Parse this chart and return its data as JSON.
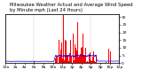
{
  "title1": "Milwaukee Weather Actual and Average Wind Speed",
  "title2": "by Minute mph (Last 24 Hours)",
  "ylabel_right_ticks": [
    0,
    5,
    10,
    15,
    20,
    25,
    30
  ],
  "ylim": [
    0,
    32
  ],
  "xlim": [
    0,
    1440
  ],
  "background_color": "#ffffff",
  "plot_bg_color": "#ffffff",
  "grid_color": "#bbbbbb",
  "bar_color": "#ff0000",
  "line_color": "#0000ff",
  "n_minutes": 1440,
  "title_fontsize": 3.8,
  "tick_fontsize": 3.2,
  "active_start": 620,
  "active_end": 1150,
  "calm_avg": 1.5,
  "active_avg_min": 3.0,
  "active_avg_max": 6.5
}
